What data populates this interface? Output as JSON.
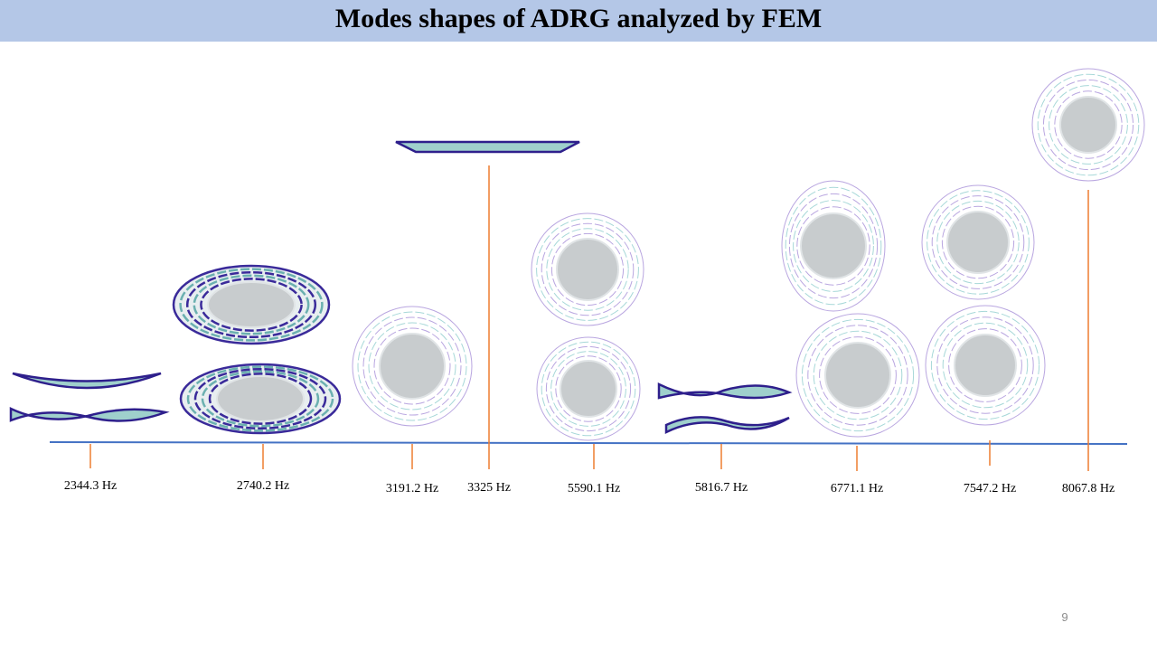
{
  "header": {
    "title": "Modes shapes of ADRG analyzed by FEM"
  },
  "modes": [
    {
      "label": "2344.3 Hz"
    },
    {
      "label": "2740.2 Hz"
    },
    {
      "label": "3191.2 Hz"
    },
    {
      "label": "3325 Hz"
    },
    {
      "label": "5590.1 Hz"
    },
    {
      "label": "5816.7 Hz"
    },
    {
      "label": "6771.1 Hz"
    },
    {
      "label": "7547.2 Hz"
    },
    {
      "label": "8067.8 Hz"
    }
  ],
  "footer": {
    "page_number": "9"
  }
}
